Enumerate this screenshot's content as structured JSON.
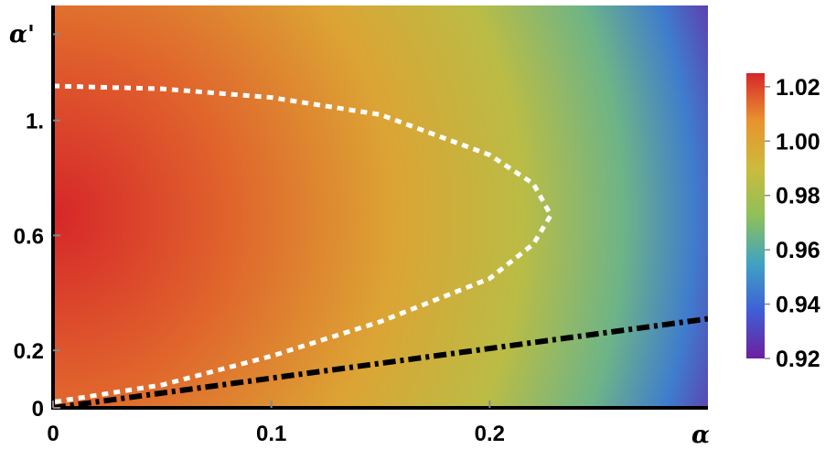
{
  "chart_data": {
    "type": "heatmap",
    "title": "",
    "xlabel": "α",
    "ylabel": "α'",
    "xlim": [
      0,
      0.3
    ],
    "ylim": [
      0,
      1.4
    ],
    "x_ticks": [
      {
        "value": 0,
        "label": "0"
      },
      {
        "value": 0.1,
        "label": "0.1"
      },
      {
        "value": 0.2,
        "label": "0.2"
      }
    ],
    "y_ticks": [
      {
        "value": 0,
        "label": "0"
      },
      {
        "value": 0.2,
        "label": "0.2"
      },
      {
        "value": 0.6,
        "label": "0.6"
      },
      {
        "value": 1.0,
        "label": "1."
      }
    ],
    "colorbar": {
      "range": [
        0.92,
        1.025
      ],
      "ticks": [
        {
          "value": 1.02,
          "label": "1.02"
        },
        {
          "value": 1.0,
          "label": "1.00"
        },
        {
          "value": 0.98,
          "label": "0.98"
        },
        {
          "value": 0.96,
          "label": "0.96"
        },
        {
          "value": 0.94,
          "label": "0.94"
        },
        {
          "value": 0.92,
          "label": "0.92"
        }
      ],
      "colors": [
        "#6d1f9e",
        "#3f5fd6",
        "#3fa3c2",
        "#8fc05a",
        "#cbbb3c",
        "#e8932e",
        "#d6262a"
      ]
    },
    "field": {
      "peak_value": 1.025,
      "peak_at": [
        0,
        0.67
      ],
      "min_value": 0.92,
      "min_at": [
        0.3,
        1.4
      ]
    },
    "series": [
      {
        "style": "white-dotted",
        "x": [
          0,
          0.05,
          0.1,
          0.15,
          0.2,
          0.22,
          0.228,
          0.22,
          0.2,
          0.15,
          0.1,
          0.05,
          0
        ],
        "y": [
          1.12,
          1.11,
          1.08,
          1.02,
          0.88,
          0.78,
          0.67,
          0.57,
          0.45,
          0.3,
          0.18,
          0.08,
          0.02
        ]
      },
      {
        "style": "black-dash-dot",
        "x": [
          0,
          0.3
        ],
        "y": [
          0,
          0.31
        ]
      }
    ]
  }
}
